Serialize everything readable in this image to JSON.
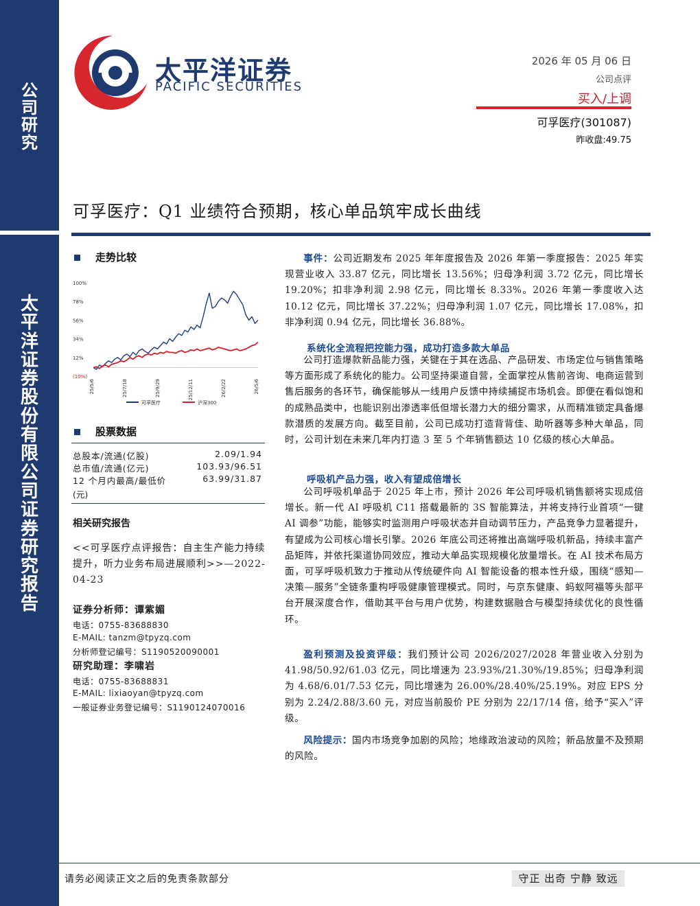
{
  "sidebar": {
    "label_top": [
      "公",
      "司",
      "研",
      "究"
    ],
    "label_bottom": [
      "太",
      "平",
      "洋",
      "证",
      "券",
      "股",
      "份",
      "有",
      "限",
      "公",
      "司",
      "证",
      "券",
      "研",
      "究",
      "报",
      "告"
    ]
  },
  "header": {
    "logo_cn": "太平洋证券",
    "logo_en": "PACIFIC SECURITIES",
    "date": "2026 年 05 月 06 日",
    "report_type": "公司点评",
    "rating": "买入/上调",
    "stock": "可孚医疗(301087)",
    "close": "昨收盘:49.75"
  },
  "title": "可孚医疗：Q1 业绩符合预期，核心单品筑牢成长曲线",
  "left": {
    "trend_heading": "走势比较",
    "stock_heading": "股票数据",
    "stock_rows": [
      {
        "k": "总股本/流通(亿股)",
        "v": "2.09/1.94"
      },
      {
        "k": "总市值/流通(亿元)",
        "v": "103.93/96.51"
      },
      {
        "k": "12 个月内最高/最低价",
        "v": "63.99/31.87"
      }
    ],
    "stock_unit": "(元)",
    "related_heading": "相关研究报告",
    "related_text": "<<可孚医疗点评报告：自主生产能力持续提升，听力业务布局进展顺利>>—2022-04-23",
    "analyst": "证券分析师：谭紫媚",
    "analyst_tel": "电话：0755-83688830",
    "analyst_email": "E-MAIL: tanzm@tpyzq.com",
    "analyst_reg": "分析师登记编号：S1190520090001",
    "assistant": "研究助理：李啸岩",
    "assistant_tel": "电话：0755-83688831",
    "assistant_email": "E-MAIL: lixiaoyan@tpyzq.com",
    "assistant_reg": "一般证券业务登记编号：S1190124070016"
  },
  "chart_data": {
    "type": "line",
    "y_ticks": [
      "100%",
      "78%",
      "56%",
      "34%",
      "12%",
      "(10%)"
    ],
    "ylim": [
      -10,
      100
    ],
    "x_ticks": [
      "25/5/6",
      "25/7/18",
      "25/9/29",
      "25/12/11",
      "26/2/22",
      "26/5/6"
    ],
    "series": [
      {
        "name": "可孚医疗",
        "color": "#1e3a8a",
        "values": [
          0,
          -2,
          3,
          1,
          5,
          8,
          6,
          10,
          12,
          9,
          14,
          16,
          13,
          18,
          15,
          20,
          22,
          19,
          17,
          21,
          24,
          22,
          26,
          30,
          28,
          34,
          31,
          36,
          40,
          38,
          44,
          42,
          48,
          45,
          50,
          47,
          60,
          75,
          88,
          70,
          72,
          78,
          82,
          80,
          76,
          84,
          90,
          86,
          80,
          74,
          62,
          56,
          60,
          52,
          56
        ]
      },
      {
        "name": "沪深300",
        "color": "#d21f2a",
        "values": [
          0,
          1,
          -1,
          2,
          3,
          1,
          4,
          5,
          6,
          8,
          7,
          9,
          12,
          10,
          13,
          14,
          12,
          15,
          16,
          15,
          17,
          16,
          18,
          17,
          19,
          18,
          18,
          17,
          19,
          20,
          18,
          19,
          21,
          20,
          22,
          20,
          21,
          22,
          23,
          21,
          22,
          24,
          23,
          22,
          21,
          20,
          21,
          22,
          20,
          21,
          22,
          24,
          26,
          27,
          30
        ]
      }
    ]
  },
  "main": {
    "event_label": "事件：",
    "event_text": "公司近期发布 2025 年年度报告及 2026 年第一季度报告：2025 年实现营业收入 33.87 亿元，同比增长 13.56%；归母净利润 3.72 亿元，同比增长 19.20%；扣非净利润 2.98 亿元，同比增长 8.33%。2026 年第一季度收入达 10.12 亿元，同比增长 37.22%；归母净利润 1.07 亿元，同比增长 17.08%，扣非净利润 0.94 亿元，同比增长 36.88%。",
    "s1_heading": "系统化全流程把控能力强，成功打造多款大单品",
    "s1_text": "公司打造爆款新品能力强，关键在于其在选品、产品研发、市场定位与销售策略等方面形成了系统化的能力。公司坚持渠道自营，全面掌控从售前咨询、电商运营到售后服务的各环节，确保能够从一线用户反馈中持续捕捉市场机会。即便在看似饱和的成熟品类中，也能识别出渗透率低但增长潜力大的细分需求，从而精准锁定具备爆款潜质的发展方向。截至目前，公司已成功打造背背佳、助听器等多种大单品，同时，公司计划在未来几年内打造 3 至 5 个年销售额达 10 亿级的核心大单品。",
    "s2_heading": "呼吸机产品力强，收入有望成倍增长",
    "s2_text": "公司呼吸机单品于 2025 年上市，预计 2026 年公司呼吸机销售额将实现成倍增长。新一代 AI 呼吸机 C11 搭载最新的 3S 智能算法，并将支持行业首项“一键 AI 调参”功能，能够实时监测用户呼吸状态并自动调节压力，产品竞争力显著提升，有望成为公司核心增长引擎。2026 年底公司还将推出高端呼吸机新品，持续丰富产品矩阵，并依托渠道协同效应，推动大单品实现规模化放量增长。在 AI 技术布局方面，可孚呼吸机致力于推动从传统硬件向 AI 智能设备的根本性升级，围绕“感知—决策—服务”全链条重构呼吸健康管理模式。同时，与京东健康、蚂蚁阿福等头部平台开展深度合作，借助其平台与用户优势，构建数据融合与模型持续优化的良性循环。",
    "forecast_label": "盈利预测及投资评级：",
    "forecast_text": "我们预计公司 2026/2027/2028 年营业收入分别为 41.98/50.92/61.03 亿元，同比增速为 23.93%/21.30%/19.85%；归母净利润为 4.68/6.01/7.53 亿元，同比增速为 26.00%/28.40%/25.19%。对应 EPS 分别为 2.24/2.88/3.60 元，对应当前股价 PE 分别为 22/17/14 倍，给予“买入”评级。",
    "risk_label": "风险提示：",
    "risk_text": "国内市场竞争加剧的风险；地缘政治波动的风险；新品放量不及预期的风险。"
  },
  "footer": {
    "left": "请务必阅读正文之后的免责条款部分",
    "right": "守正 出奇 宁静 致远"
  },
  "colors": {
    "navy": "#1e3a6e",
    "red": "#d6262e",
    "blue_label": "#1e4b8f"
  }
}
